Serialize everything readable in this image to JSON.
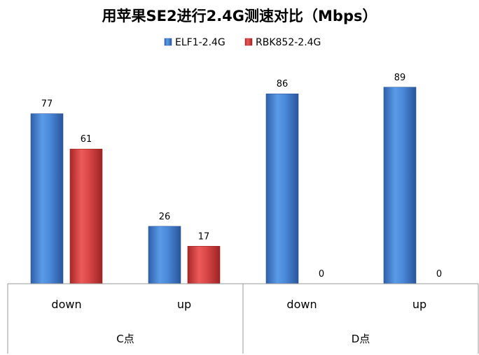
{
  "chart_data": {
    "type": "bar",
    "title": "用苹果SE2进行2.4G测速对比（Mbps）",
    "xlabel": "",
    "ylabel": "",
    "ylim": [
      0,
      100
    ],
    "grid": false,
    "legend_position": "top",
    "categories": [
      "down",
      "up",
      "down",
      "up"
    ],
    "groups": [
      {
        "label": "C点",
        "categories": [
          "down",
          "up"
        ]
      },
      {
        "label": "D点",
        "categories": [
          "down",
          "up"
        ]
      }
    ],
    "series": [
      {
        "name": "ELF1-2.4G",
        "color": "#3f7fd2",
        "values": [
          77,
          26,
          86,
          89
        ]
      },
      {
        "name": "RBK852-2.4G",
        "color": "#d43c3c",
        "values": [
          61,
          17,
          0,
          0
        ]
      }
    ]
  }
}
